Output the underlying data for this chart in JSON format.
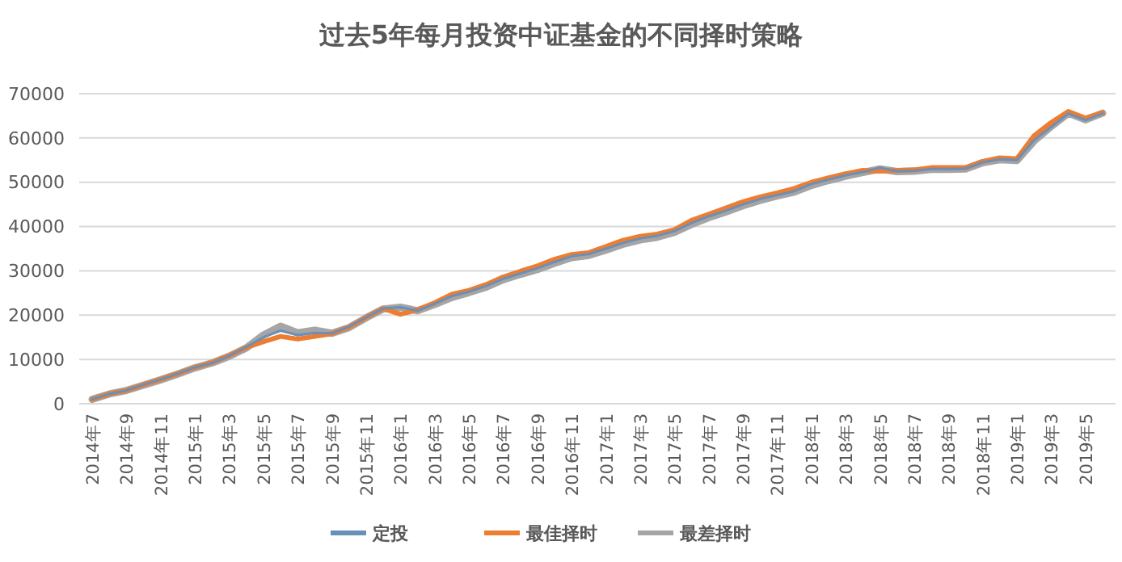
{
  "chart_data": {
    "type": "line",
    "title": "过去5年每月投资中证基金的不同择时策略",
    "categories": [
      "2014年7",
      null,
      "2014年9",
      null,
      "2014年11",
      null,
      "2015年1",
      null,
      "2015年3",
      null,
      "2015年5",
      null,
      "2015年7",
      null,
      "2015年9",
      null,
      "2015年11",
      null,
      "2016年1",
      null,
      "2016年3",
      null,
      "2016年5",
      null,
      "2016年7",
      null,
      "2016年9",
      null,
      "2016年11",
      null,
      "2017年1",
      null,
      "2017年3",
      null,
      "2017年5",
      null,
      "2017年7",
      null,
      "2017年9",
      null,
      "2017年11",
      null,
      "2018年1",
      null,
      "2018年3",
      null,
      "2018年5",
      null,
      "2018年7",
      null,
      "2018年9",
      null,
      "2018年11",
      null,
      "2019年1",
      null,
      "2019年3",
      null,
      "2019年5",
      null
    ],
    "series": [
      {
        "name": "定投",
        "color": "#6a8fb8",
        "values": [
          1000,
          2200,
          3000,
          4300,
          5500,
          6800,
          8200,
          9200,
          10800,
          12800,
          15000,
          16500,
          15500,
          16000,
          15900,
          17400,
          19500,
          21500,
          21800,
          21000,
          22600,
          24300,
          25300,
          26600,
          28200,
          29400,
          30600,
          32000,
          33300,
          33800,
          35000,
          36300,
          37300,
          37900,
          39000,
          40800,
          42300,
          43600,
          45000,
          46200,
          47100,
          48000,
          49600,
          50600,
          51600,
          52300,
          53300,
          52500,
          52600,
          53000,
          53000,
          53100,
          54500,
          55200,
          55000,
          59500,
          62500,
          65500,
          64000,
          65500
        ]
      },
      {
        "name": "最佳择时",
        "color": "#ed7d31",
        "values": [
          1000,
          2200,
          3000,
          4300,
          5500,
          6800,
          8200,
          9300,
          10900,
          12700,
          14000,
          15200,
          14600,
          15200,
          15800,
          17300,
          19500,
          21500,
          20200,
          21200,
          22800,
          24700,
          25600,
          26900,
          28600,
          29900,
          31100,
          32600,
          33700,
          34100,
          35500,
          36900,
          37800,
          38300,
          39300,
          41400,
          42800,
          44200,
          45600,
          46700,
          47600,
          48600,
          50000,
          51000,
          51900,
          52700,
          52500,
          52700,
          52800,
          53300,
          53300,
          53300,
          54700,
          55500,
          55300,
          60500,
          63500,
          66000,
          64500,
          65700
        ]
      },
      {
        "name": "最差择时",
        "color": "#a5a5a5",
        "values": [
          1000,
          2200,
          3000,
          4200,
          5400,
          6700,
          8100,
          9200,
          10700,
          12600,
          15500,
          17500,
          16000,
          16600,
          15900,
          17200,
          19400,
          21400,
          21800,
          21000,
          22400,
          24000,
          25100,
          26300,
          28000,
          29200,
          30300,
          31700,
          33000,
          33500,
          34700,
          36000,
          37000,
          37600,
          38700,
          40500,
          42000,
          43300,
          44700,
          45900,
          46900,
          47800,
          49300,
          50400,
          51400,
          52200,
          53000,
          52400,
          52500,
          52900,
          52900,
          53000,
          54400,
          55100,
          54900,
          59300,
          62600,
          65600,
          64100,
          65600
        ]
      }
    ],
    "ylim": [
      0,
      70000
    ],
    "yticks": [
      0,
      10000,
      20000,
      30000,
      40000,
      50000,
      60000,
      70000
    ],
    "grid": "y",
    "legend": "bottom",
    "marker": "none",
    "line_style": "solid"
  }
}
